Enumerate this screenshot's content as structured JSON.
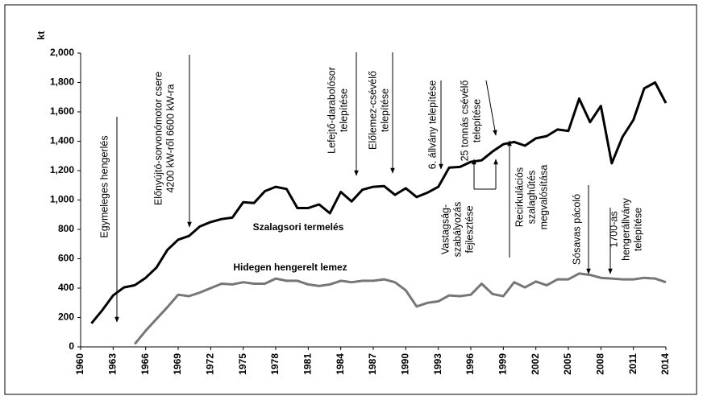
{
  "chart_data": {
    "type": "line",
    "ylabel": "kt",
    "x": [
      1961,
      1962,
      1963,
      1964,
      1965,
      1966,
      1967,
      1968,
      1969,
      1970,
      1971,
      1972,
      1973,
      1974,
      1975,
      1976,
      1977,
      1978,
      1979,
      1980,
      1981,
      1982,
      1983,
      1984,
      1985,
      1986,
      1987,
      1988,
      1989,
      1990,
      1991,
      1992,
      1993,
      1994,
      1995,
      1996,
      1997,
      1998,
      1999,
      2000,
      2001,
      2002,
      2003,
      2004,
      2005,
      2006,
      2007,
      2008,
      2009,
      2010,
      2011,
      2012,
      2013,
      2014
    ],
    "series": [
      {
        "name": "Szalagsori termelés",
        "color": "#000000",
        "values": [
          160,
          250,
          350,
          405,
          420,
          470,
          540,
          660,
          730,
          755,
          820,
          850,
          870,
          880,
          985,
          980,
          1060,
          1090,
          1075,
          945,
          945,
          970,
          910,
          1055,
          990,
          1070,
          1090,
          1095,
          1035,
          1080,
          1020,
          1050,
          1090,
          1220,
          1225,
          1260,
          1270,
          1330,
          1380,
          1395,
          1370,
          1420,
          1435,
          1480,
          1470,
          1690,
          1530,
          1640,
          1250,
          1430,
          1545,
          1760,
          1800,
          1660
        ]
      },
      {
        "name": "Hidegen hengerelt lemez",
        "color": "#767676",
        "values": [
          null,
          null,
          null,
          null,
          20,
          110,
          190,
          270,
          355,
          345,
          370,
          400,
          430,
          425,
          440,
          430,
          430,
          465,
          450,
          450,
          425,
          415,
          425,
          450,
          440,
          450,
          450,
          460,
          440,
          385,
          275,
          300,
          310,
          350,
          345,
          355,
          430,
          360,
          345,
          440,
          405,
          445,
          420,
          460,
          460,
          500,
          490,
          470,
          465,
          460,
          460,
          470,
          465,
          440
        ]
      }
    ],
    "xlim": [
      1960,
      2014
    ],
    "xticks": [
      1960,
      1963,
      1966,
      1969,
      1972,
      1975,
      1978,
      1981,
      1984,
      1987,
      1990,
      1993,
      1996,
      1999,
      2002,
      2005,
      2008,
      2011,
      2014
    ],
    "ylim": [
      0,
      2000
    ],
    "yticks": [
      0,
      200,
      400,
      600,
      800,
      {
        "value": 1000,
        "label": "1,000"
      },
      {
        "value": 1200,
        "label": "1,200"
      },
      {
        "value": 1400,
        "label": "1,400"
      },
      {
        "value": 1600,
        "label": "1,600"
      },
      {
        "value": 1800,
        "label": "1,800"
      },
      {
        "value": 2000,
        "label": "2,000"
      }
    ],
    "grid": false,
    "annotations": [
      [
        "Egymeleges hengerlés"
      ],
      [
        "Előnyújtó-sorvonómotor csere",
        "4200 kW-ről 6600 kW-ra"
      ],
      [
        "Lefejtő-darabolósor",
        "telepítése"
      ],
      [
        "Előlemez-csévélő",
        "telepítése"
      ],
      [
        "6. állvány telepítése"
      ],
      [
        "25 tonnás csévélő",
        "telepítése"
      ],
      [
        "Vastagság-",
        "szabályozás",
        "fejlesztése"
      ],
      [
        "Recirkulációs",
        "szalaghűtés",
        "megvalósítása"
      ],
      [
        "Sósavas pácoló"
      ],
      [
        "1700-as",
        "hengerállvány",
        "telepítése"
      ]
    ]
  }
}
